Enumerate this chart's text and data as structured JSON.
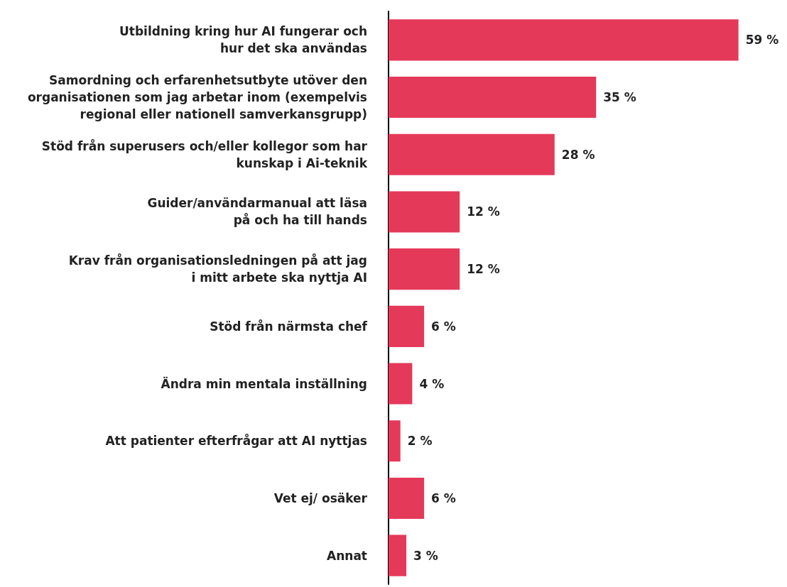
{
  "chart_data": {
    "type": "bar",
    "orientation": "horizontal",
    "categories": [
      "Utbildning kring hur AI fungerar och\nhur det ska användas",
      "Samordning och erfarenhetsutbyte utöver den\norganisationen som jag arbetar inom (exempelvis\nregional eller nationell samverkansgrupp)",
      "Stöd från superusers och/eller kollegor som har\nkunskap i Ai-teknik",
      "Guider/användarmanual att läsa\npå och ha till hands",
      "Krav från organisationsledningen på att jag\ni mitt arbete ska nyttja AI",
      "Stöd från närmsta chef",
      "Ändra min mentala inställning",
      "Att patienter efterfrågar att AI nyttjas",
      "Vet ej/ osäker",
      "Annat"
    ],
    "values": [
      59,
      35,
      28,
      12,
      12,
      6,
      4,
      2,
      6,
      3
    ],
    "value_labels": [
      "59 %",
      "35 %",
      "28 %",
      "12 %",
      "12 %",
      "6 %",
      "4 %",
      "2 %",
      "6 %",
      "3 %"
    ],
    "color": "#e5395a"
  }
}
